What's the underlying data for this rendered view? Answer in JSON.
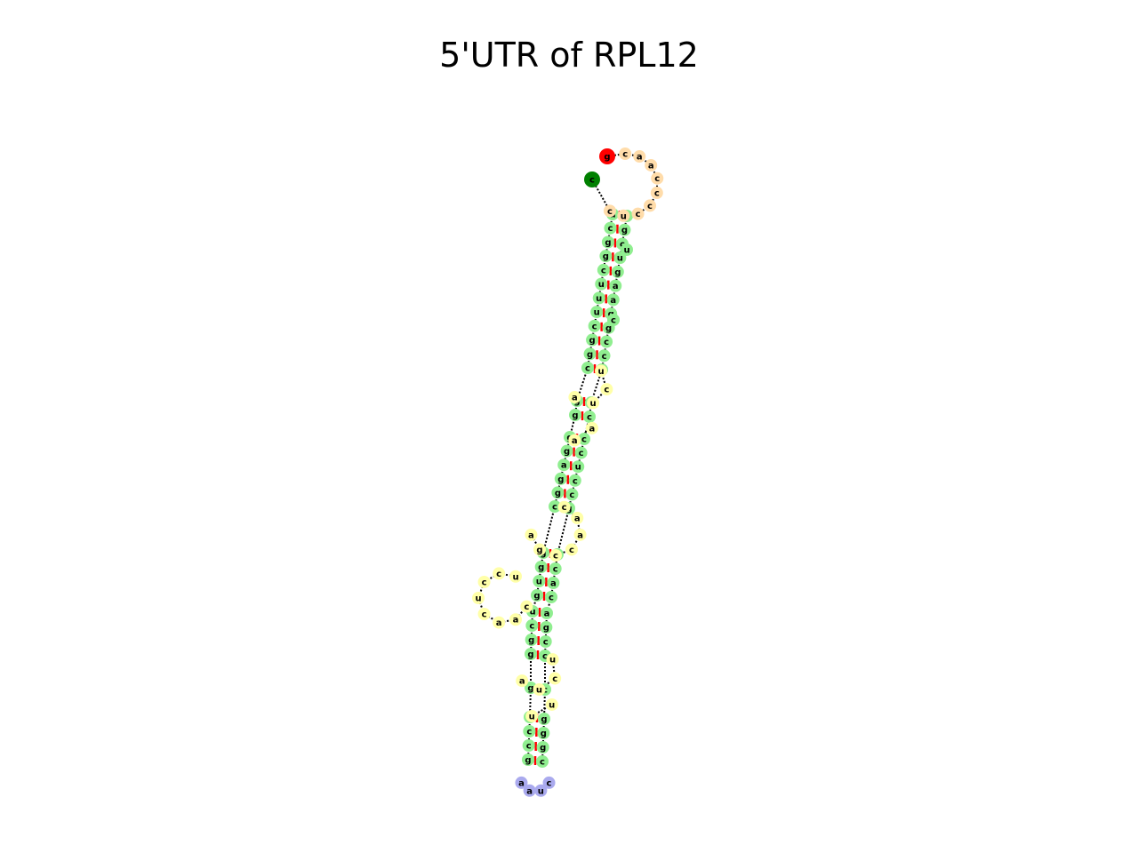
{
  "title": "5'UTR of RPL12",
  "colors": {
    "stem": "#90ee90",
    "interior_loop": "#ffffa8",
    "hairpin_loop": "#aaaaee",
    "external_region": "#ffdcaa",
    "five_prime_end": "#ff0000",
    "three_prime_end": "#008000",
    "base_pair_line": "#ff0000",
    "backbone": "#000000"
  },
  "structure": {
    "five_prime_terminal": "g",
    "three_prime_terminal": "c",
    "external_loop": [
      "c",
      "a",
      "a",
      "c",
      "c",
      "c",
      "c",
      "u",
      "c"
    ],
    "stem_pairs": [
      [
        "u",
        "a"
      ],
      [
        "c",
        "g"
      ],
      [
        "g",
        "c"
      ],
      [
        "g",
        "u"
      ],
      [
        "c",
        "g"
      ],
      [
        "u",
        "a"
      ],
      [
        "u",
        "a"
      ],
      [
        "u",
        "g"
      ],
      [
        "c",
        "g"
      ],
      [
        "g",
        "c"
      ],
      [
        "g",
        "c"
      ],
      [
        "c",
        "g"
      ],
      [
        "g",
        "c"
      ],
      [
        "g",
        "c"
      ],
      [
        "g",
        "c"
      ],
      [
        "g",
        "c"
      ],
      [
        "a",
        "u"
      ],
      [
        "g",
        "c"
      ],
      [
        "g",
        "c"
      ],
      [
        "c",
        "g"
      ],
      [
        "g",
        "c"
      ],
      [
        "g",
        "c"
      ],
      [
        "u",
        "a"
      ],
      [
        "g",
        "c"
      ],
      [
        "u",
        "a"
      ],
      [
        "c",
        "g"
      ],
      [
        "g",
        "c"
      ],
      [
        "g",
        "c"
      ],
      [
        "g",
        "c"
      ],
      [
        "c",
        "g"
      ],
      [
        "c",
        "g"
      ],
      [
        "c",
        "g"
      ],
      [
        "g",
        "c"
      ]
    ],
    "hairpin_loop": [
      "a",
      "a",
      "u",
      "c"
    ],
    "internal_loops": [
      {
        "left": [
          "u",
          "c"
        ],
        "right": [
          "u",
          "a"
        ]
      },
      {
        "left": [
          "a"
        ],
        "right": [
          "a"
        ]
      },
      {
        "left": [
          "c",
          "a",
          "a"
        ],
        "right": [
          "c",
          "c",
          "g",
          "a"
        ]
      },
      {
        "left": [
          "u",
          "c"
        ],
        "right": [
          "u",
          "a"
        ]
      },
      {
        "left": [
          "u"
        ],
        "right": [
          "u"
        ]
      }
    ],
    "bulges": [
      {
        "right": [
          "u"
        ]
      },
      {
        "right": [
          "c"
        ]
      }
    ],
    "side_hairpin": [
      "c",
      "a",
      "a",
      "c",
      "u",
      "c",
      "c",
      "u"
    ]
  }
}
